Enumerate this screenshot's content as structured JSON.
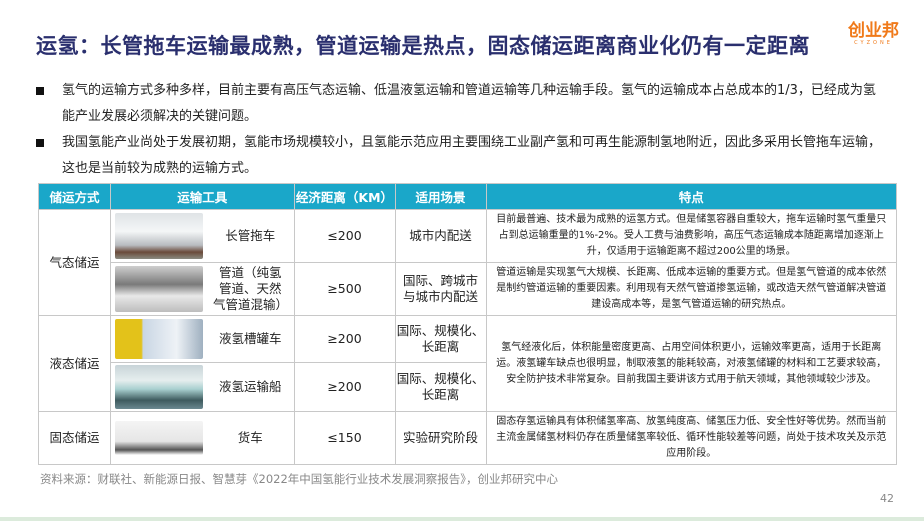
{
  "title": "运氢：长管拖车运输最成熟，管道运输是热点，固态储运距离商业化仍有一定距离",
  "logo": {
    "cn": "创业邦",
    "en": "CYZONE"
  },
  "bullets": [
    "氢气的运输方式多种多样，目前主要有高压气态运输、低温液氢运输和管道运输等几种运输手段。氢气的运输成本占总成本的1/3，已经成为氢能产业发展必须解决的关键问题。",
    "我国氢能产业尚处于发展初期，氢能市场规模较小，且氢能示范应用主要围绕工业副产氢和可再生能源制氢地附近，因此多采用长管拖车运输，这也是当前较为成熟的运输方式。"
  ],
  "table": {
    "headers": [
      "储运方式",
      "运输工具",
      "经济距离（KM）",
      "适用场景",
      "特点"
    ],
    "groups": [
      "气态储运",
      "液态储运",
      "固态储运"
    ],
    "rows": [
      {
        "tool": "长管拖车",
        "distance": "≤200",
        "scene": "城市内配送",
        "feature": "目前最普遍、技术最为成熟的运氢方式。但是储氢容器自重较大，拖车运输时氢气重量只占到总运输重量的1%-2%。受人工费与油费影响，高压气态运输成本随距离增加逐渐上升，仅适用于运输距离不超过200公里的场景。"
      },
      {
        "tool": "管道（纯氢管道、天然气管道混输）",
        "distance": "≥500",
        "scene": "国际、跨城市与城市内配送",
        "feature": "管道运输是实现氢气大规模、长距离、低成本运输的重要方式。但是氢气管道的成本依然是制约管道运输的重要因素。利用现有天然气管道掺氢运输，或改造天然气管道解决管道建设高成本等，是氢气管道运输的研究热点。"
      },
      {
        "tool": "液氢槽罐车",
        "distance": "≥200",
        "scene": "国际、规模化、长距离",
        "feature": "氢气经液化后，体积能量密度更高、占用空间体积更小，运输效率更高，适用于长距离运。液氢罐车缺点也很明显，制取液氢的能耗较高，对液氢储罐的材料和工艺要求较高，安全防护技术非常复杂。目前我国主要讲该方式用于航天领域，其他领域较少涉及。"
      },
      {
        "tool": "液氢运输船",
        "distance": "≥200",
        "scene": "国际、规模化、长距离"
      },
      {
        "tool": "货车",
        "distance": "≤150",
        "scene": "实验研究阶段",
        "feature": "固态存氢运输具有体积储氢率高、放氢纯度高、储氢压力低、安全性好等优势。然而当前主流金属储氢材料仍存在质量储氢率较低、循环性能较差等问题，尚处于技术攻关及示范应用阶段。"
      }
    ]
  },
  "source": "资料来源：财联社、新能源日报、智慧芽《2022年中国氢能行业技术发展洞察报告》，创业邦研究中心",
  "page_number": "42",
  "colors": {
    "header": "#1aa7c9",
    "title": "#2a2f6e",
    "logo": "#f07a1a"
  }
}
